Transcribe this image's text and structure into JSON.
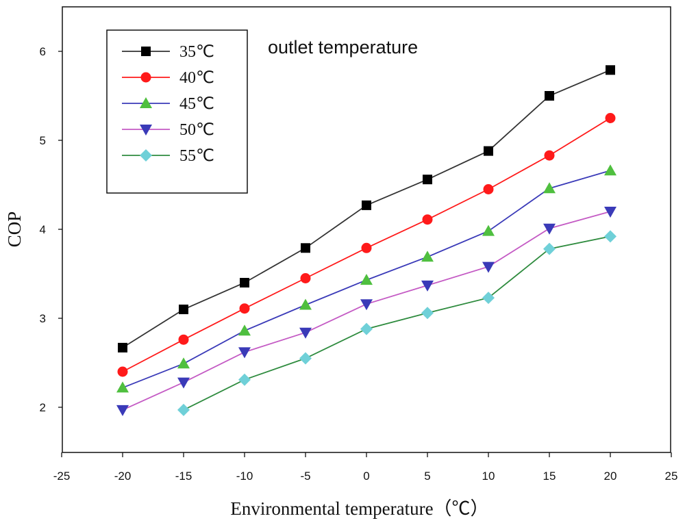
{
  "chart_data": {
    "type": "line",
    "title": "",
    "xlabel": "Environmental temperature（℃）",
    "ylabel": "COP",
    "annotation": "outlet temperature",
    "xlim": [
      -25,
      25
    ],
    "ylim": [
      1.5,
      6.5
    ],
    "x_ticks": [
      -25,
      -20,
      -15,
      -10,
      -5,
      0,
      5,
      10,
      15,
      20,
      25
    ],
    "x_tick_labels": [
      "-25",
      "-20",
      "-15",
      "-10",
      "-5",
      "0",
      "5",
      "10",
      "15",
      "20",
      "25"
    ],
    "y_ticks": [
      2,
      3,
      4,
      5,
      6
    ],
    "y_tick_labels": [
      "2",
      "3",
      "4",
      "5",
      "6"
    ],
    "grid": false,
    "legend_position": "top-left",
    "series": [
      {
        "name": "35℃",
        "color": "#333333",
        "marker": "square",
        "x": [
          -20,
          -15,
          -10,
          -5,
          0,
          5,
          10,
          15,
          20
        ],
        "values": [
          2.67,
          3.1,
          3.4,
          3.79,
          4.27,
          4.56,
          4.88,
          5.5,
          5.79
        ]
      },
      {
        "name": "40℃",
        "color": "#ff1a1a",
        "marker": "circle",
        "x": [
          -20,
          -15,
          -10,
          -5,
          0,
          5,
          10,
          15,
          20
        ],
        "values": [
          2.4,
          2.76,
          3.11,
          3.45,
          3.79,
          4.11,
          4.45,
          4.83,
          5.25
        ]
      },
      {
        "name": "45℃",
        "color": "#3a3ab8",
        "marker": "triangle-up",
        "x": [
          -20,
          -15,
          -10,
          -5,
          0,
          5,
          10,
          15,
          20
        ],
        "values": [
          2.22,
          2.49,
          2.86,
          3.15,
          3.43,
          3.69,
          3.98,
          4.46,
          4.66
        ]
      },
      {
        "name": "50℃",
        "color": "#c45ac4",
        "marker": "triangle-down",
        "x": [
          -20,
          -15,
          -10,
          -5,
          0,
          5,
          10,
          15,
          20
        ],
        "values": [
          1.97,
          2.28,
          2.62,
          2.84,
          3.16,
          3.37,
          3.58,
          4.01,
          4.2
        ]
      },
      {
        "name": "55℃",
        "color": "#2e8b3e",
        "marker": "diamond",
        "x": [
          -15,
          -10,
          -5,
          0,
          5,
          10,
          15,
          20
        ],
        "values": [
          1.97,
          2.31,
          2.55,
          2.88,
          3.06,
          3.23,
          3.78,
          3.92
        ]
      }
    ],
    "marker_colors": {
      "square": "#000000",
      "circle": "#ff1a1a",
      "triangle-up": "#4fbf3f",
      "triangle-down": "#3a3ab8",
      "diamond": "#6fd0d8"
    }
  }
}
